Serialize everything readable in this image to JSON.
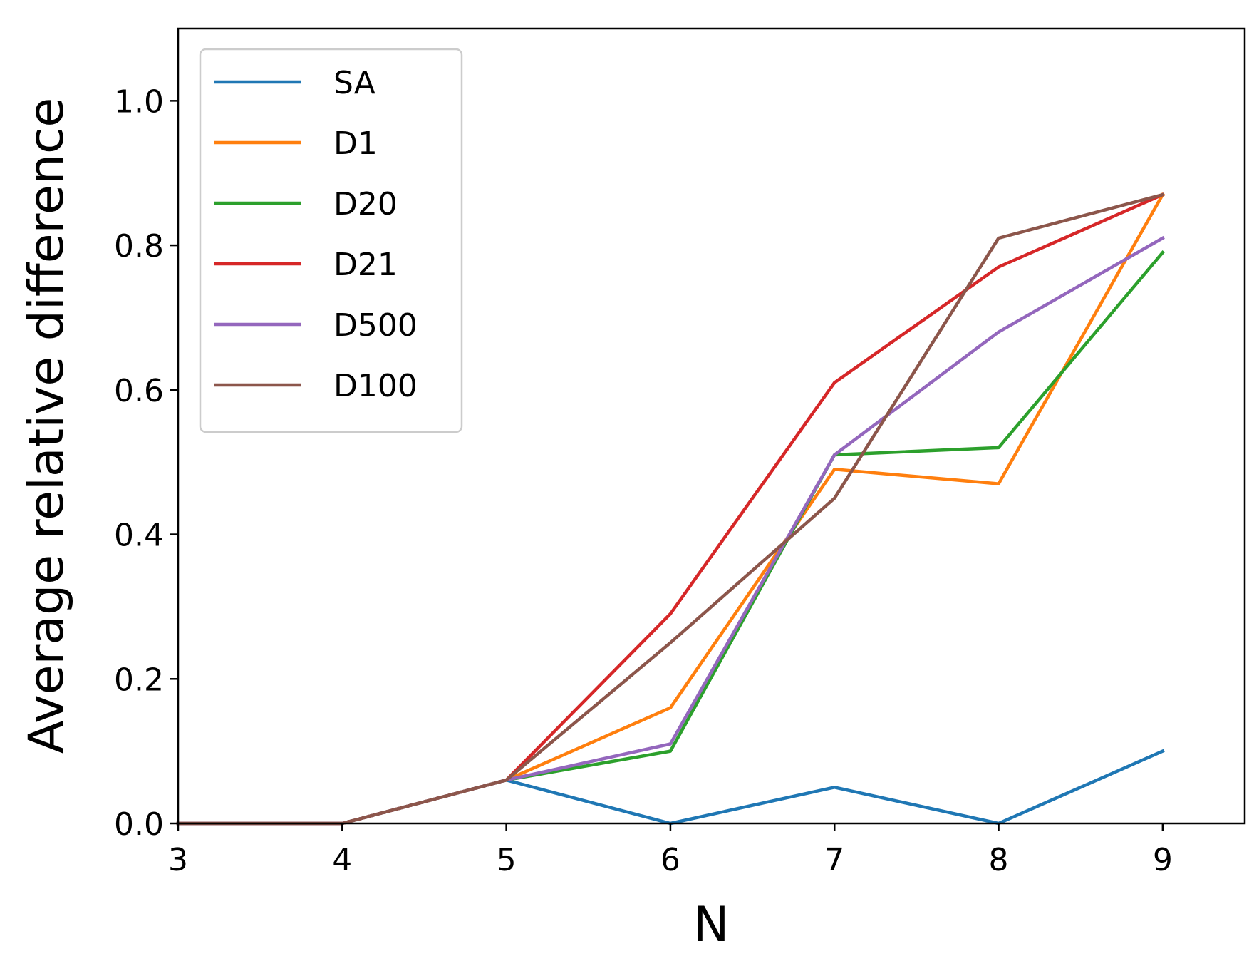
{
  "chart_data": {
    "type": "line",
    "title": "",
    "xlabel": "N",
    "ylabel": "Average relative difference",
    "xlim": [
      3,
      9.5
    ],
    "ylim": [
      0,
      1.1
    ],
    "x": [
      3,
      4,
      5,
      6,
      7,
      8,
      9
    ],
    "xticks": [
      "3",
      "4",
      "5",
      "6",
      "7",
      "8",
      "9"
    ],
    "yticks": [
      "0.0",
      "0.2",
      "0.4",
      "0.6",
      "0.8",
      "1.0"
    ],
    "ytick_values": [
      0,
      0.2,
      0.4,
      0.6,
      0.8,
      1.0
    ],
    "grid": false,
    "legend_position": "top-left",
    "series": [
      {
        "name": "SA",
        "color": "#1f77b4",
        "values": [
          0,
          0,
          0.06,
          0.0,
          0.05,
          0.0,
          0.1
        ]
      },
      {
        "name": "D1",
        "color": "#ff7f0e",
        "values": [
          0,
          0,
          0.06,
          0.16,
          0.49,
          0.47,
          0.87
        ]
      },
      {
        "name": "D20",
        "color": "#2ca02c",
        "values": [
          0,
          0,
          0.06,
          0.1,
          0.51,
          0.52,
          0.79
        ]
      },
      {
        "name": "D21",
        "color": "#d62728",
        "values": [
          0,
          0,
          0.06,
          0.29,
          0.61,
          0.77,
          0.87
        ]
      },
      {
        "name": "D500",
        "color": "#9467bd",
        "values": [
          0,
          0,
          0.06,
          0.11,
          0.51,
          0.68,
          0.81
        ]
      },
      {
        "name": "D100",
        "color": "#8c564b",
        "values": [
          0,
          0,
          0.06,
          0.25,
          0.45,
          0.81,
          0.87
        ]
      }
    ]
  }
}
